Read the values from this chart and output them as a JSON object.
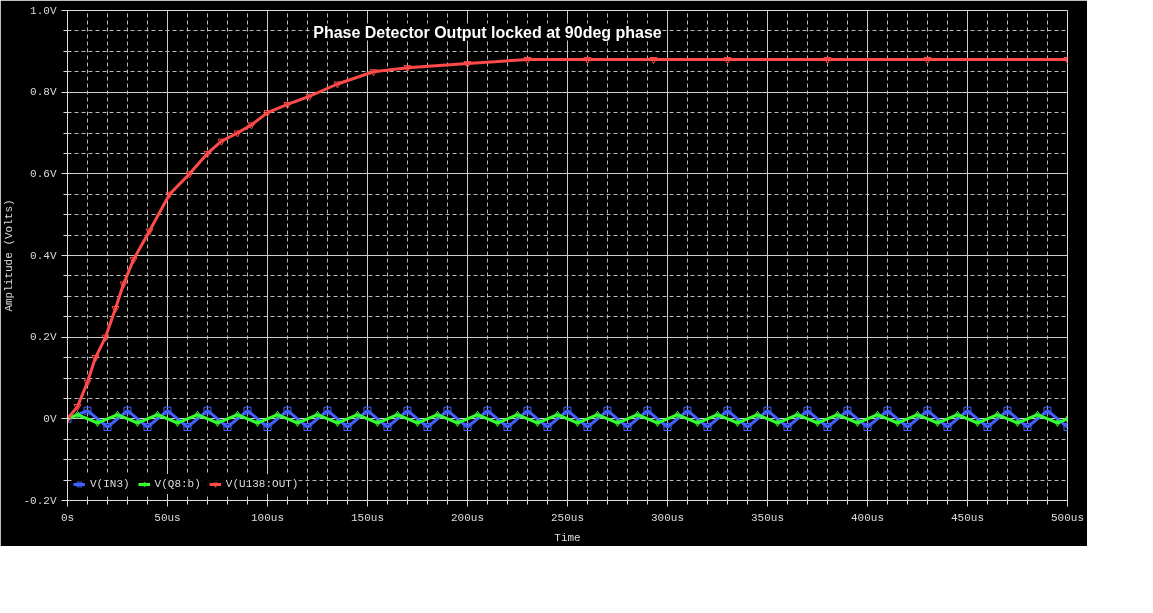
{
  "chart_data": {
    "type": "line",
    "title": "Phase Detector Output locked at 90deg phase",
    "xlabel": "Time",
    "ylabel": "Amplitude (Volts)",
    "xlim": [
      0,
      500
    ],
    "ylim": [
      -0.2,
      1.0
    ],
    "xticks": [
      {
        "value": 0,
        "label": "0s"
      },
      {
        "value": 50,
        "label": "50us"
      },
      {
        "value": 100,
        "label": "100us"
      },
      {
        "value": 150,
        "label": "150us"
      },
      {
        "value": 200,
        "label": "200us"
      },
      {
        "value": 250,
        "label": "250us"
      },
      {
        "value": 300,
        "label": "300us"
      },
      {
        "value": 350,
        "label": "350us"
      },
      {
        "value": 400,
        "label": "400us"
      },
      {
        "value": 450,
        "label": "450us"
      },
      {
        "value": 500,
        "label": "500us"
      }
    ],
    "yticks": [
      {
        "value": -0.2,
        "label": "-0.2V"
      },
      {
        "value": 0,
        "label": "0V"
      },
      {
        "value": 0.2,
        "label": "0.2V"
      },
      {
        "value": 0.4,
        "label": "0.4V"
      },
      {
        "value": 0.6,
        "label": "0.6V"
      },
      {
        "value": 0.8,
        "label": "0.8V"
      },
      {
        "value": 1.0,
        "label": "1.0V"
      }
    ],
    "grid": true,
    "legend": "bottom left",
    "series": [
      {
        "name": "V(IN3)",
        "color": "#4060ff",
        "marker": "square",
        "x": [
          0,
          10,
          20,
          30,
          40,
          50,
          60,
          70,
          80,
          90,
          100,
          110,
          120,
          130,
          140,
          150,
          160,
          170,
          180,
          190,
          200,
          210,
          220,
          230,
          240,
          250,
          260,
          270,
          280,
          290,
          300,
          310,
          320,
          330,
          340,
          350,
          360,
          370,
          380,
          390,
          400,
          410,
          420,
          430,
          440,
          450,
          460,
          470,
          480,
          490,
          500
        ],
        "values": [
          0,
          0.02,
          -0.02,
          0.02,
          -0.02,
          0.02,
          -0.02,
          0.02,
          -0.02,
          0.02,
          -0.02,
          0.02,
          -0.02,
          0.02,
          -0.02,
          0.02,
          -0.02,
          0.02,
          -0.02,
          0.02,
          -0.02,
          0.02,
          -0.02,
          0.02,
          -0.02,
          0.02,
          -0.02,
          0.02,
          -0.02,
          0.02,
          -0.02,
          0.02,
          -0.02,
          0.02,
          -0.02,
          0.02,
          -0.02,
          0.02,
          -0.02,
          0.02,
          -0.02,
          0.02,
          -0.02,
          0.02,
          -0.02,
          0.02,
          -0.02,
          0.02,
          -0.02,
          0.02,
          -0.02
        ]
      },
      {
        "name": "V(Q8:b)",
        "color": "#33ff33",
        "marker": "diamond",
        "x": [
          0,
          5,
          15,
          25,
          35,
          45,
          55,
          65,
          75,
          85,
          95,
          105,
          115,
          125,
          135,
          145,
          155,
          165,
          175,
          185,
          195,
          205,
          215,
          225,
          235,
          245,
          255,
          265,
          275,
          285,
          295,
          305,
          315,
          325,
          335,
          345,
          355,
          365,
          375,
          385,
          395,
          405,
          415,
          425,
          435,
          445,
          455,
          465,
          475,
          485,
          495,
          500
        ],
        "values": [
          0,
          0.01,
          -0.01,
          0.01,
          -0.01,
          0.01,
          -0.01,
          0.01,
          -0.01,
          0.01,
          -0.01,
          0.01,
          -0.01,
          0.01,
          -0.01,
          0.01,
          -0.01,
          0.01,
          -0.01,
          0.01,
          -0.01,
          0.01,
          -0.01,
          0.01,
          -0.01,
          0.01,
          -0.01,
          0.01,
          -0.01,
          0.01,
          -0.01,
          0.01,
          -0.01,
          0.01,
          -0.01,
          0.01,
          -0.01,
          0.01,
          -0.01,
          0.01,
          -0.01,
          0.01,
          -0.01,
          0.01,
          -0.01,
          0.01,
          -0.01,
          0.01,
          -0.01,
          0.01,
          -0.01,
          0
        ]
      },
      {
        "name": "V(U138:OUT)",
        "color": "#ff4a4a",
        "marker": "triangle",
        "x": [
          0,
          5,
          10,
          14,
          19,
          24,
          28,
          33,
          41,
          51,
          61,
          70,
          77,
          85,
          92,
          100,
          110,
          121,
          135,
          153,
          170,
          200,
          230,
          260,
          293,
          330,
          380,
          430,
          500
        ],
        "values": [
          0,
          0.03,
          0.09,
          0.15,
          0.2,
          0.27,
          0.33,
          0.39,
          0.46,
          0.55,
          0.6,
          0.65,
          0.68,
          0.7,
          0.72,
          0.75,
          0.77,
          0.79,
          0.82,
          0.85,
          0.86,
          0.87,
          0.88,
          0.88,
          0.88,
          0.88,
          0.88,
          0.88,
          0.88
        ]
      }
    ]
  }
}
